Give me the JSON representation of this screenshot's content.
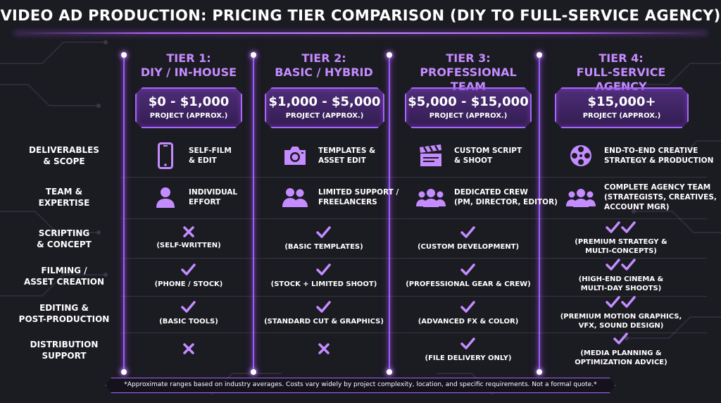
{
  "title": "VIDEO AD PRODUCTION: PRICING TIER COMPARISON (DIY TO FULL-SERVICE AGENCY)",
  "accent_color": "#a866ff",
  "background_color": "#1b1b22",
  "rows": [
    {
      "label": "DELIVERABLES\n& SCOPE"
    },
    {
      "label": "TEAM &\nEXPERTISE"
    },
    {
      "label": "SCRIPTING\n& CONCEPT"
    },
    {
      "label": "FILMING /\nASSET CREATION"
    },
    {
      "label": "EDITING &\nPOST-PRODUCTION"
    },
    {
      "label": "DISTRIBUTION\nSUPPORT"
    }
  ],
  "tiers": [
    {
      "header": "TIER 1:\nDIY / IN-HOUSE",
      "price": "$0 - $1,000",
      "price_note": "PROJECT (APPROX.)",
      "deliverables": {
        "icon": "smartphone-icon",
        "text": "SELF-FILM\n& EDIT"
      },
      "team": {
        "icon": "person-icon",
        "text": "INDIVIDUAL\nEFFORT"
      },
      "cells": [
        {
          "mark": "cross",
          "text": "(SELF-WRITTEN)"
        },
        {
          "mark": "check",
          "text": "(PHONE / STOCK)"
        },
        {
          "mark": "check",
          "text": "(BASIC TOOLS)"
        },
        {
          "mark": "cross",
          "text": ""
        }
      ]
    },
    {
      "header": "TIER 2:\nBASIC / HYBRID",
      "price": "$1,000 - $5,000",
      "price_note": "PROJECT (APPROX.)",
      "deliverables": {
        "icon": "camera-icon",
        "text": "TEMPLATES &\nASSET EDIT"
      },
      "team": {
        "icon": "two-people-icon",
        "text": "LIMITED SUPPORT /\nFREELANCERS"
      },
      "cells": [
        {
          "mark": "check",
          "text": "(BASIC TEMPLATES)"
        },
        {
          "mark": "check",
          "text": "(STOCK + LIMITED SHOOT)"
        },
        {
          "mark": "check",
          "text": "(STANDARD CUT & GRAPHICS)"
        },
        {
          "mark": "cross",
          "text": ""
        }
      ]
    },
    {
      "header": "TIER 3:\nPROFESSIONAL TEAM",
      "price": "$5,000 - $15,000",
      "price_note": "PROJECT (APPROX.)",
      "deliverables": {
        "icon": "clapperboard-icon",
        "text": "CUSTOM SCRIPT\n& SHOOT"
      },
      "team": {
        "icon": "group-icon",
        "text": "DEDICATED CREW\n(PM, DIRECTOR, EDITOR)"
      },
      "cells": [
        {
          "mark": "check",
          "text": "(CUSTOM DEVELOPMENT)"
        },
        {
          "mark": "check",
          "text": "(PROFESSIONAL GEAR & CREW)"
        },
        {
          "mark": "check",
          "text": "(ADVANCED FX & COLOR)"
        },
        {
          "mark": "check",
          "text": "(FILE DELIVERY ONLY)"
        }
      ]
    },
    {
      "header": "TIER 4:\nFULL-SERVICE AGENCY",
      "price": "$15,000+",
      "price_note": "PROJECT (APPROX.)",
      "deliverables": {
        "icon": "film-reel-icon",
        "text": "END-TO-END CREATIVE\nSTRATEGY & PRODUCTION"
      },
      "team": {
        "icon": "group-icon",
        "text": "COMPLETE AGENCY TEAM\n(STRATEGISTS, CREATIVES,\nACCOUNT MGR)"
      },
      "cells": [
        {
          "mark": "double-check",
          "text": "(PREMIUM STRATEGY &\nMULTI-CONCEPTS)"
        },
        {
          "mark": "double-check",
          "text": "(HIGH-END CINEMA &\nMULTI-DAY SHOOTS)"
        },
        {
          "mark": "double-check",
          "text": "(PREMIUM MOTION GRAPHICS,\nVFX, SOUND DESIGN)"
        },
        {
          "mark": "check",
          "text": "(MEDIA PLANNING &\nOPTIMIZATION ADVICE)"
        }
      ]
    }
  ],
  "footnote": "*Approximate ranges based on industry averages. Costs vary widely by project complexity, location, and specific requirements. Not a formal quote.*"
}
